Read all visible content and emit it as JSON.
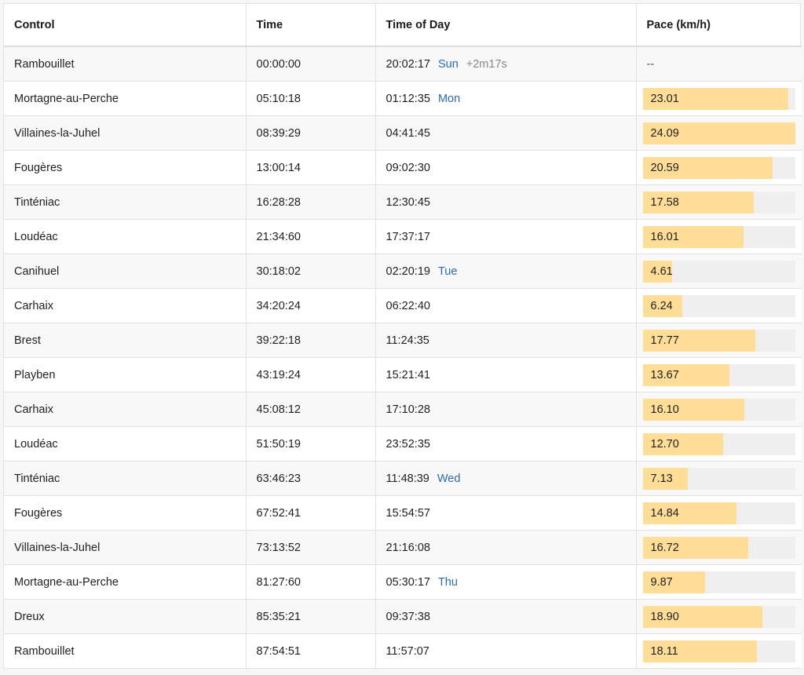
{
  "table": {
    "headers": [
      "Control",
      "Time",
      "Time of Day",
      "Pace (km/h)"
    ],
    "max_pace": 24.09,
    "bar_fill_color": "#fedd96",
    "bar_track_color": "#efefef",
    "day_color": "#2a6bb0",
    "rows": [
      {
        "control": "Rambouillet",
        "time": "00:00:00",
        "tod": "20:02:17",
        "day": "Sun",
        "offset": "+2m17s",
        "pace": null,
        "pace_text": "--"
      },
      {
        "control": "Mortagne-au-Perche",
        "time": "05:10:18",
        "tod": "01:12:35",
        "day": "Mon",
        "offset": "",
        "pace": 23.01,
        "pace_text": "23.01"
      },
      {
        "control": "Villaines-la-Juhel",
        "time": "08:39:29",
        "tod": "04:41:45",
        "day": "",
        "offset": "",
        "pace": 24.09,
        "pace_text": "24.09"
      },
      {
        "control": "Fougères",
        "time": "13:00:14",
        "tod": "09:02:30",
        "day": "",
        "offset": "",
        "pace": 20.59,
        "pace_text": "20.59"
      },
      {
        "control": "Tinténiac",
        "time": "16:28:28",
        "tod": "12:30:45",
        "day": "",
        "offset": "",
        "pace": 17.58,
        "pace_text": "17.58"
      },
      {
        "control": "Loudéac",
        "time": "21:34:60",
        "tod": "17:37:17",
        "day": "",
        "offset": "",
        "pace": 16.01,
        "pace_text": "16.01"
      },
      {
        "control": "Canihuel",
        "time": "30:18:02",
        "tod": "02:20:19",
        "day": "Tue",
        "offset": "",
        "pace": 4.61,
        "pace_text": "4.61"
      },
      {
        "control": "Carhaix",
        "time": "34:20:24",
        "tod": "06:22:40",
        "day": "",
        "offset": "",
        "pace": 6.24,
        "pace_text": "6.24"
      },
      {
        "control": "Brest",
        "time": "39:22:18",
        "tod": "11:24:35",
        "day": "",
        "offset": "",
        "pace": 17.77,
        "pace_text": "17.77"
      },
      {
        "control": "Playben",
        "time": "43:19:24",
        "tod": "15:21:41",
        "day": "",
        "offset": "",
        "pace": 13.67,
        "pace_text": "13.67"
      },
      {
        "control": "Carhaix",
        "time": "45:08:12",
        "tod": "17:10:28",
        "day": "",
        "offset": "",
        "pace": 16.1,
        "pace_text": "16.10"
      },
      {
        "control": "Loudéac",
        "time": "51:50:19",
        "tod": "23:52:35",
        "day": "",
        "offset": "",
        "pace": 12.7,
        "pace_text": "12.70"
      },
      {
        "control": "Tinténiac",
        "time": "63:46:23",
        "tod": "11:48:39",
        "day": "Wed",
        "offset": "",
        "pace": 7.13,
        "pace_text": "7.13"
      },
      {
        "control": "Fougères",
        "time": "67:52:41",
        "tod": "15:54:57",
        "day": "",
        "offset": "",
        "pace": 14.84,
        "pace_text": "14.84"
      },
      {
        "control": "Villaines-la-Juhel",
        "time": "73:13:52",
        "tod": "21:16:08",
        "day": "",
        "offset": "",
        "pace": 16.72,
        "pace_text": "16.72"
      },
      {
        "control": "Mortagne-au-Perche",
        "time": "81:27:60",
        "tod": "05:30:17",
        "day": "Thu",
        "offset": "",
        "pace": 9.87,
        "pace_text": "9.87"
      },
      {
        "control": "Dreux",
        "time": "85:35:21",
        "tod": "09:37:38",
        "day": "",
        "offset": "",
        "pace": 18.9,
        "pace_text": "18.90"
      },
      {
        "control": "Rambouillet",
        "time": "87:54:51",
        "tod": "11:57:07",
        "day": "",
        "offset": "",
        "pace": 18.11,
        "pace_text": "18.11"
      }
    ]
  }
}
